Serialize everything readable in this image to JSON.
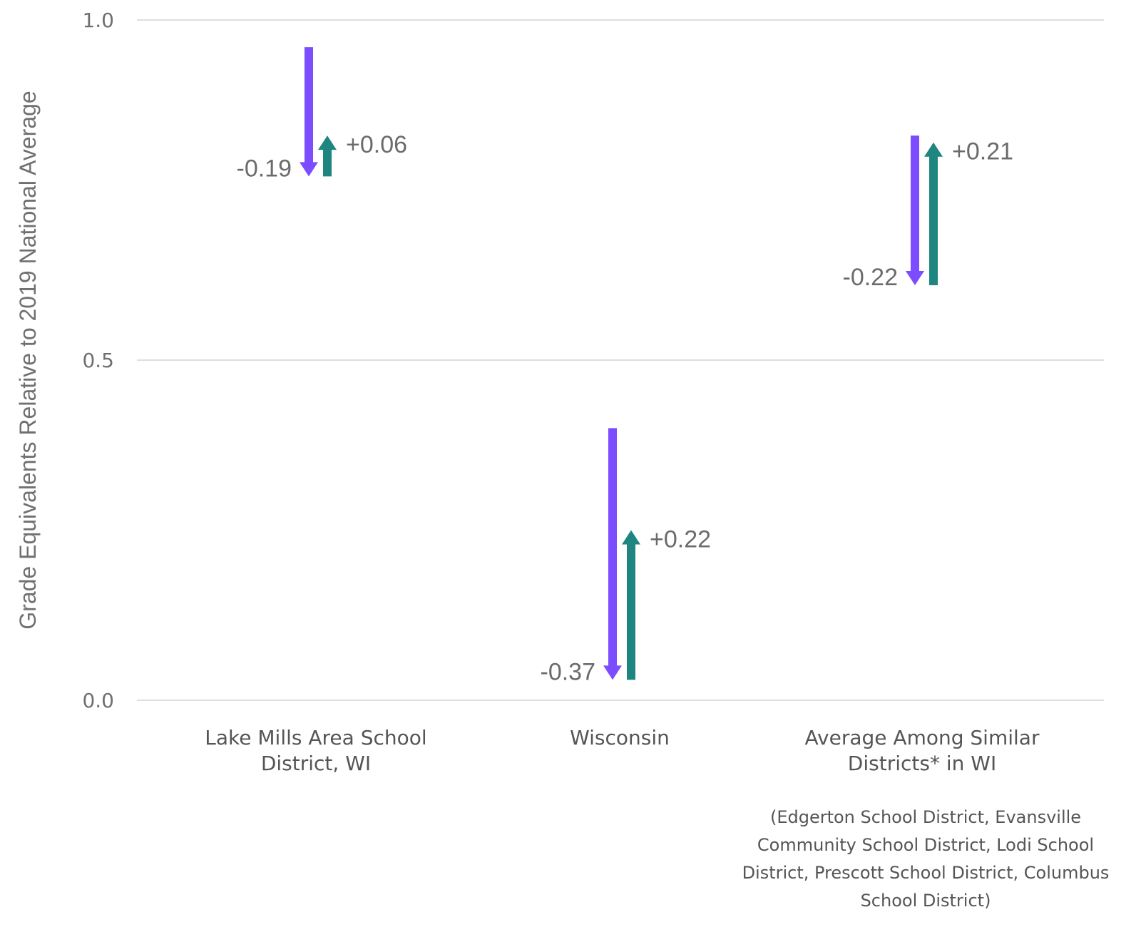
{
  "chart_data": {
    "type": "arrow",
    "ylabel": "Grade Equivalents Relative to 2019 National Average",
    "ylim": [
      0,
      1.0
    ],
    "y_ticks": [
      "0.0",
      "0.5",
      "1.0"
    ],
    "grid": true,
    "colors": {
      "decline": "#7c4dff",
      "recovery": "#1f8580",
      "grid": "#dedede",
      "text": "#707070"
    },
    "categories": [
      {
        "label_lines": [
          "Lake Mills Area School",
          "District, WI"
        ],
        "start": 0.96,
        "decline": -0.19,
        "decline_label": "-0.19",
        "recovery": 0.06,
        "recovery_label": "+0.06"
      },
      {
        "label_lines": [
          "Wisconsin"
        ],
        "start": 0.4,
        "decline": -0.37,
        "decline_label": "-0.37",
        "recovery": 0.22,
        "recovery_label": "+0.22"
      },
      {
        "label_lines": [
          "Average Among Similar",
          "Districts* in WI"
        ],
        "start": 0.83,
        "decline": -0.22,
        "decline_label": "-0.22",
        "recovery": 0.21,
        "recovery_label": "+0.21"
      }
    ],
    "footnote_lines": [
      "(Edgerton School District, Evansville",
      "Community School District, Lodi School",
      "District, Prescott School District, Columbus",
      "School District)"
    ]
  }
}
